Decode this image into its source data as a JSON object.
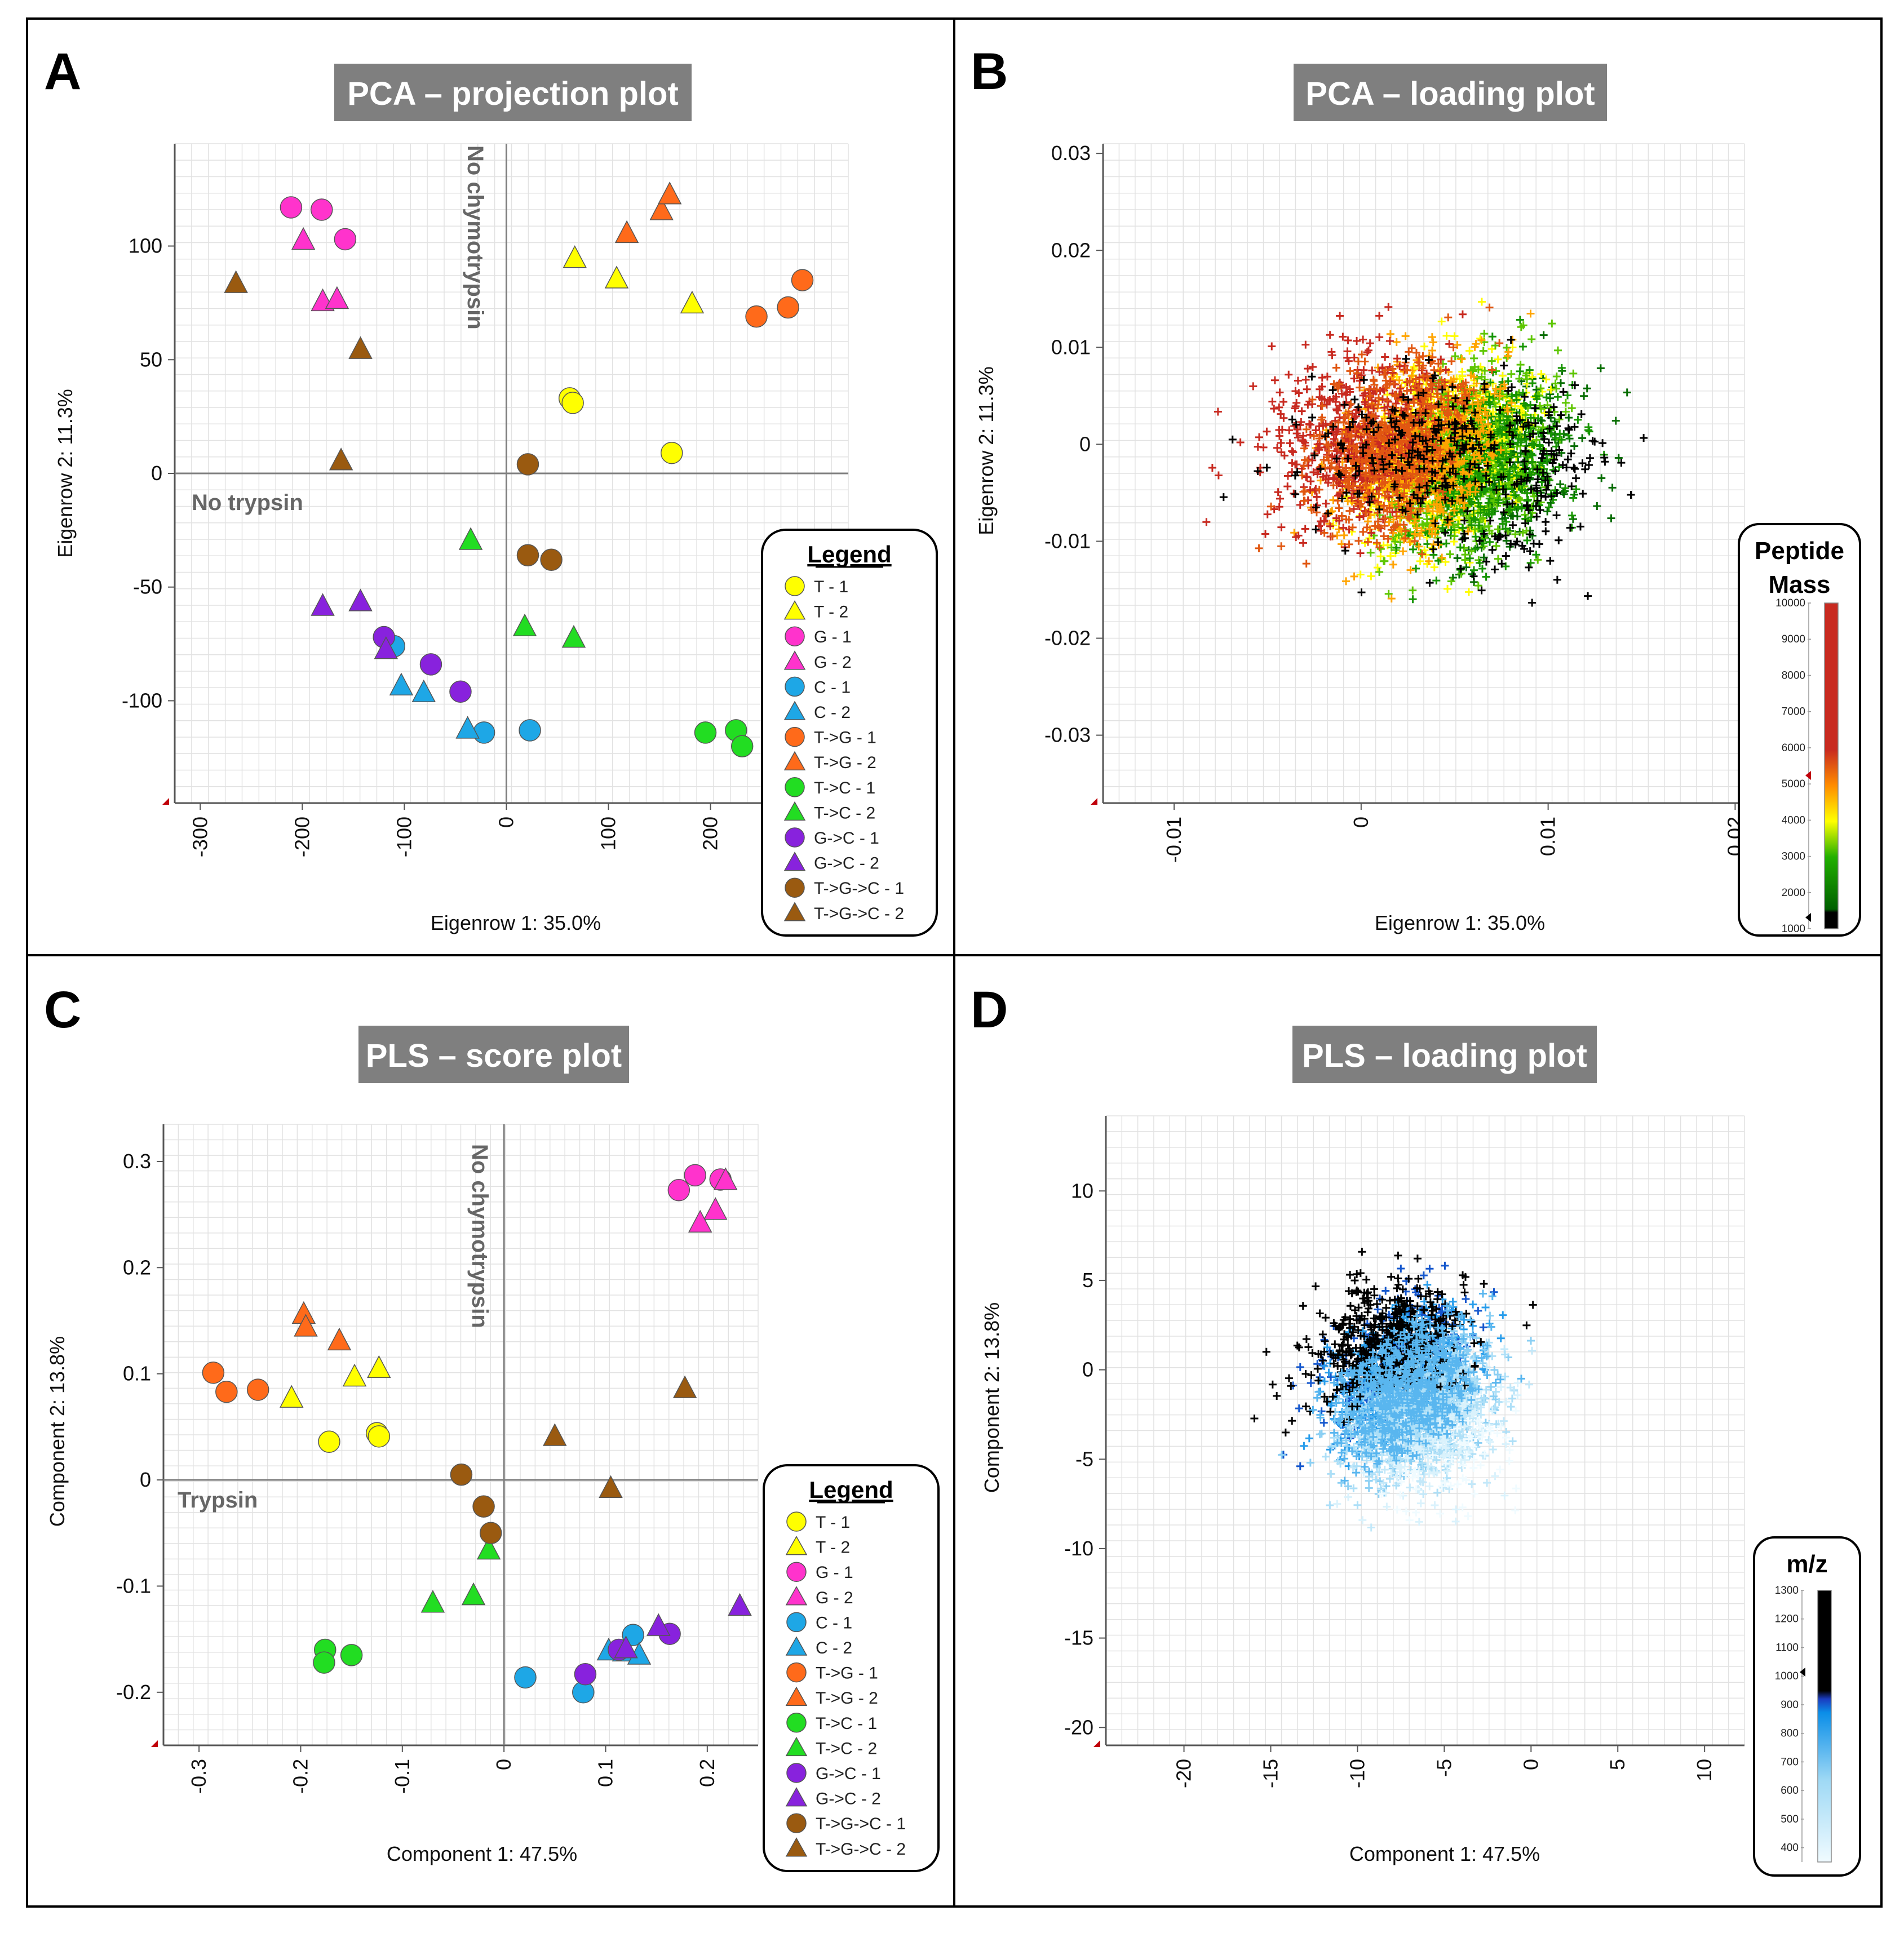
{
  "colors": {
    "T-1": "#ffff00",
    "T-2": "#ffff00",
    "G-1": "#ff33cc",
    "G-2": "#ff33cc",
    "C-1": "#1ea7e6",
    "C-2": "#1ea7e6",
    "T->G-1": "#ff6a1a",
    "T->G-2": "#ff6a1a",
    "T->C-1": "#22dd22",
    "T->C-2": "#22dd22",
    "G->C-1": "#8822dd",
    "G->C-2": "#8822dd",
    "T->G->C-1": "#9a5a10",
    "T->G->C-2": "#9a5a10"
  },
  "legend": {
    "title": "Legend",
    "entries": [
      {
        "label": "T - 1",
        "key": "T-1",
        "shape": "circle"
      },
      {
        "label": "T - 2",
        "key": "T-2",
        "shape": "triangle"
      },
      {
        "label": "G - 1",
        "key": "G-1",
        "shape": "circle"
      },
      {
        "label": "G - 2",
        "key": "G-2",
        "shape": "triangle"
      },
      {
        "label": "C - 1",
        "key": "C-1",
        "shape": "circle"
      },
      {
        "label": "C - 2",
        "key": "C-2",
        "shape": "triangle"
      },
      {
        "label": "T->G - 1",
        "key": "T->G-1",
        "shape": "circle"
      },
      {
        "label": "T->G - 2",
        "key": "T->G-2",
        "shape": "triangle"
      },
      {
        "label": "T->C - 1",
        "key": "T->C-1",
        "shape": "circle"
      },
      {
        "label": "T->C - 2",
        "key": "T->C-2",
        "shape": "triangle"
      },
      {
        "label": "G->C - 1",
        "key": "G->C-1",
        "shape": "circle"
      },
      {
        "label": "G->C - 2",
        "key": "G->C-2",
        "shape": "triangle"
      },
      {
        "label": "T->G->C - 1",
        "key": "T->G->C-1",
        "shape": "circle"
      },
      {
        "label": "T->G->C - 2",
        "key": "T->G->C-2",
        "shape": "triangle"
      }
    ]
  },
  "chart_data": [
    {
      "panel": "A",
      "type": "scatter",
      "title": "PCA – projection plot",
      "xlabel": "Eigenrow 1:  35.0%",
      "ylabel": "Eigenrow 2:  11.3%",
      "xlim": [
        -325,
        335
      ],
      "ylim": [
        -145,
        145
      ],
      "xticks": [
        -300,
        -200,
        -100,
        0,
        100,
        200
      ],
      "xtick_labels": [
        "-300",
        "-200",
        "-100",
        "0",
        "100",
        "200"
      ],
      "yticks": [
        -100,
        -50,
        0,
        50,
        100
      ],
      "ytick_labels": [
        "-100",
        "-50",
        "0",
        "50",
        "100"
      ],
      "annotations": [
        {
          "text": "No trypsin",
          "axis": "x"
        },
        {
          "text": "No chymotrypsin",
          "axis": "y"
        }
      ],
      "points": [
        {
          "s": "T-1",
          "x": 62,
          "y": 33
        },
        {
          "s": "T-1",
          "x": 65,
          "y": 31
        },
        {
          "s": "T-1",
          "x": 162,
          "y": 9
        },
        {
          "s": "T-2",
          "x": 67,
          "y": 95
        },
        {
          "s": "T-2",
          "x": 108,
          "y": 86
        },
        {
          "s": "T-2",
          "x": 182,
          "y": 75
        },
        {
          "s": "G-1",
          "x": -211,
          "y": 117
        },
        {
          "s": "G-1",
          "x": -181,
          "y": 116
        },
        {
          "s": "G-1",
          "x": -158,
          "y": 103
        },
        {
          "s": "G-2",
          "x": -199,
          "y": 103
        },
        {
          "s": "G-2",
          "x": -180,
          "y": 76
        },
        {
          "s": "G-2",
          "x": -166,
          "y": 77
        },
        {
          "s": "C-1",
          "x": -110,
          "y": -76
        },
        {
          "s": "C-1",
          "x": -22,
          "y": -114
        },
        {
          "s": "C-1",
          "x": 23,
          "y": -113
        },
        {
          "s": "C-2",
          "x": -103,
          "y": -93
        },
        {
          "s": "C-2",
          "x": -81,
          "y": -96
        },
        {
          "s": "C-2",
          "x": -38,
          "y": -112
        },
        {
          "s": "T->G-1",
          "x": 245,
          "y": 69
        },
        {
          "s": "T->G-1",
          "x": 276,
          "y": 73
        },
        {
          "s": "T->G-1",
          "x": 290,
          "y": 85
        },
        {
          "s": "T->G-2",
          "x": 118,
          "y": 106
        },
        {
          "s": "T->G-2",
          "x": 152,
          "y": 116
        },
        {
          "s": "T->G-2",
          "x": 160,
          "y": 123
        },
        {
          "s": "T->C-1",
          "x": 195,
          "y": -114
        },
        {
          "s": "T->C-1",
          "x": 225,
          "y": -113
        },
        {
          "s": "T->C-1",
          "x": 231,
          "y": -120
        },
        {
          "s": "T->C-2",
          "x": -35,
          "y": -29
        },
        {
          "s": "T->C-2",
          "x": 18,
          "y": -67
        },
        {
          "s": "T->C-2",
          "x": 66,
          "y": -72
        },
        {
          "s": "G->C-1",
          "x": -120,
          "y": -72
        },
        {
          "s": "G->C-1",
          "x": -74,
          "y": -84
        },
        {
          "s": "G->C-1",
          "x": -45,
          "y": -96
        },
        {
          "s": "G->C-2",
          "x": -180,
          "y": -58
        },
        {
          "s": "G->C-2",
          "x": -143,
          "y": -56
        },
        {
          "s": "G->C-2",
          "x": -118,
          "y": -77
        },
        {
          "s": "T->G->C-1",
          "x": 21,
          "y": 4
        },
        {
          "s": "T->G->C-1",
          "x": 21,
          "y": -36
        },
        {
          "s": "T->G->C-1",
          "x": 44,
          "y": -38
        },
        {
          "s": "T->G->C-2",
          "x": -265,
          "y": 84
        },
        {
          "s": "T->G->C-2",
          "x": -143,
          "y": 55
        },
        {
          "s": "T->G->C-2",
          "x": -162,
          "y": 6
        }
      ]
    },
    {
      "panel": "B",
      "type": "scatter",
      "title": "PCA – loading plot",
      "xlabel": "Eigenrow 1:  35.0%",
      "ylabel": "Eigenrow 2:  11.3%",
      "xlim": [
        -0.0138,
        0.0205
      ],
      "ylim": [
        -0.037,
        0.031
      ],
      "xticks": [
        -0.01,
        0,
        0.01,
        0.02
      ],
      "xtick_labels": [
        "-0.01",
        "0",
        "0.01",
        "0.02"
      ],
      "yticks": [
        -0.03,
        -0.02,
        -0.01,
        0,
        0.01,
        0.02,
        0.03
      ],
      "ytick_labels": [
        "-0.03",
        "-0.02",
        "-0.01",
        "0",
        "0.01",
        "0.02",
        "0.03"
      ],
      "cloud": {
        "center": [
          0.004,
          -0.001
        ],
        "spread": [
          0.0068,
          0.0095
        ],
        "count": 4200,
        "marker": "+",
        "note": "heavy-mass peptides shift toward negative Eigenrow 1, light toward positive"
      },
      "colorbar": {
        "title_line1": "Peptide",
        "title_line2": "Mass",
        "min": 1000,
        "max": 10000,
        "ticks": [
          10000,
          9000,
          8000,
          7000,
          6000,
          5000,
          4000,
          3000,
          2000,
          1000
        ],
        "tick_labels": [
          "10000",
          "9000",
          "8000",
          "7000",
          "6000",
          "5000",
          "4000",
          "3000",
          "2000",
          "1000"
        ],
        "stops": [
          [
            0,
            "#000000"
          ],
          [
            0.05,
            "#000000"
          ],
          [
            0.06,
            "#006000"
          ],
          [
            0.22,
            "#22b000"
          ],
          [
            0.33,
            "#ffff00"
          ],
          [
            0.44,
            "#ff8c00"
          ],
          [
            0.55,
            "#c82a20"
          ],
          [
            1,
            "#c82a20"
          ]
        ]
      }
    },
    {
      "panel": "C",
      "type": "scatter",
      "title": "PLS – score plot",
      "xlabel": "Component 1:  47.5%",
      "ylabel": "Component 2:  13.8%",
      "xlim": [
        -0.335,
        0.25
      ],
      "ylim": [
        -0.25,
        0.335
      ],
      "xticks": [
        -0.3,
        -0.2,
        -0.1,
        0,
        0.1,
        0.2
      ],
      "xtick_labels": [
        "-0.3",
        "-0.2",
        "-0.1",
        "0",
        "0.1",
        "0.2"
      ],
      "yticks": [
        -0.2,
        -0.1,
        0,
        0.1,
        0.2,
        0.3
      ],
      "ytick_labels": [
        "-0.2",
        "-0.1",
        "0",
        "0.1",
        "0.2",
        "0.3"
      ],
      "annotations": [
        {
          "text": "Trypsin",
          "axis": "x"
        },
        {
          "text": "No chymotrypsin",
          "axis": "y"
        }
      ],
      "points": [
        {
          "s": "T-1",
          "x": -0.172,
          "y": 0.036
        },
        {
          "s": "T-1",
          "x": -0.125,
          "y": 0.044
        },
        {
          "s": "T-1",
          "x": -0.123,
          "y": 0.041
        },
        {
          "s": "T-2",
          "x": -0.209,
          "y": 0.078
        },
        {
          "s": "T-2",
          "x": -0.147,
          "y": 0.098
        },
        {
          "s": "T-2",
          "x": -0.123,
          "y": 0.106
        },
        {
          "s": "G-1",
          "x": 0.172,
          "y": 0.273
        },
        {
          "s": "G-1",
          "x": 0.188,
          "y": 0.287
        },
        {
          "s": "G-1",
          "x": 0.213,
          "y": 0.283
        },
        {
          "s": "G-2",
          "x": 0.208,
          "y": 0.255
        },
        {
          "s": "G-2",
          "x": 0.193,
          "y": 0.243
        },
        {
          "s": "G-2",
          "x": 0.218,
          "y": 0.283
        },
        {
          "s": "C-1",
          "x": 0.021,
          "y": -0.186
        },
        {
          "s": "C-1",
          "x": 0.078,
          "y": -0.2
        },
        {
          "s": "C-1",
          "x": 0.127,
          "y": -0.146
        },
        {
          "s": "C-2",
          "x": 0.103,
          "y": -0.16
        },
        {
          "s": "C-2",
          "x": 0.118,
          "y": -0.161
        },
        {
          "s": "C-2",
          "x": 0.133,
          "y": -0.164
        },
        {
          "s": "T->G-1",
          "x": -0.286,
          "y": 0.101
        },
        {
          "s": "T->G-1",
          "x": -0.273,
          "y": 0.083
        },
        {
          "s": "T->G-1",
          "x": -0.242,
          "y": 0.085
        },
        {
          "s": "T->G-2",
          "x": -0.197,
          "y": 0.157
        },
        {
          "s": "T->G-2",
          "x": -0.195,
          "y": 0.145
        },
        {
          "s": "T->G-2",
          "x": -0.162,
          "y": 0.132
        },
        {
          "s": "T->C-1",
          "x": -0.176,
          "y": -0.16
        },
        {
          "s": "T->C-1",
          "x": -0.177,
          "y": -0.172
        },
        {
          "s": "T->C-1",
          "x": -0.15,
          "y": -0.165
        },
        {
          "s": "T->C-2",
          "x": -0.07,
          "y": -0.115
        },
        {
          "s": "T->C-2",
          "x": -0.03,
          "y": -0.108
        },
        {
          "s": "T->C-2",
          "x": -0.015,
          "y": -0.065
        },
        {
          "s": "G->C-1",
          "x": 0.08,
          "y": -0.183
        },
        {
          "s": "G->C-1",
          "x": 0.113,
          "y": -0.16
        },
        {
          "s": "G->C-1",
          "x": 0.163,
          "y": -0.145
        },
        {
          "s": "G->C-2",
          "x": 0.12,
          "y": -0.158
        },
        {
          "s": "G->C-2",
          "x": 0.152,
          "y": -0.137
        },
        {
          "s": "G->C-2",
          "x": 0.232,
          "y": -0.118
        },
        {
          "s": "T->G->C-1",
          "x": -0.042,
          "y": 0.005
        },
        {
          "s": "T->G->C-1",
          "x": -0.02,
          "y": -0.025
        },
        {
          "s": "T->G->C-1",
          "x": -0.013,
          "y": -0.05
        },
        {
          "s": "T->G->C-2",
          "x": 0.05,
          "y": 0.042
        },
        {
          "s": "T->G->C-2",
          "x": 0.105,
          "y": -0.007
        },
        {
          "s": "T->G->C-2",
          "x": 0.178,
          "y": 0.087
        }
      ]
    },
    {
      "panel": "D",
      "type": "scatter",
      "title": "PLS – loading plot",
      "xlabel": "Component 1:  47.5%",
      "ylabel": "Component 2:  13.8%",
      "xlim": [
        -24.5,
        12.3
      ],
      "ylim": [
        -21,
        14.2
      ],
      "xticks": [
        -20,
        -15,
        -10,
        -5,
        0,
        5,
        10
      ],
      "xtick_labels": [
        "-20",
        "-15",
        "-10",
        "-5",
        "0",
        "5",
        "10"
      ],
      "yticks": [
        -20,
        -15,
        -10,
        -5,
        0,
        5,
        10
      ],
      "ytick_labels": [
        "-20",
        "-15",
        "-10",
        "-5",
        "0",
        "5",
        "10"
      ],
      "cloud": {
        "center": [
          -7,
          -1
        ],
        "spread": [
          4.5,
          4.8
        ],
        "count": 3200,
        "marker": "+",
        "note": "high m/z peptides cluster upper-left"
      },
      "colorbar": {
        "title": "m/z",
        "min": 350,
        "max": 1300,
        "ticks": [
          1300,
          1200,
          1100,
          1000,
          900,
          800,
          700,
          600,
          500,
          400
        ],
        "tick_labels": [
          "1300",
          "1200",
          "1100",
          "1000",
          "900",
          "800",
          "700",
          "600",
          "500",
          "400"
        ],
        "stops": [
          [
            0,
            "#f0fbff"
          ],
          [
            0.3,
            "#9fd9f5"
          ],
          [
            0.55,
            "#0a8ee8"
          ],
          [
            0.6,
            "#1a3cc0"
          ],
          [
            0.63,
            "#000000"
          ],
          [
            1,
            "#000000"
          ]
        ]
      }
    }
  ]
}
